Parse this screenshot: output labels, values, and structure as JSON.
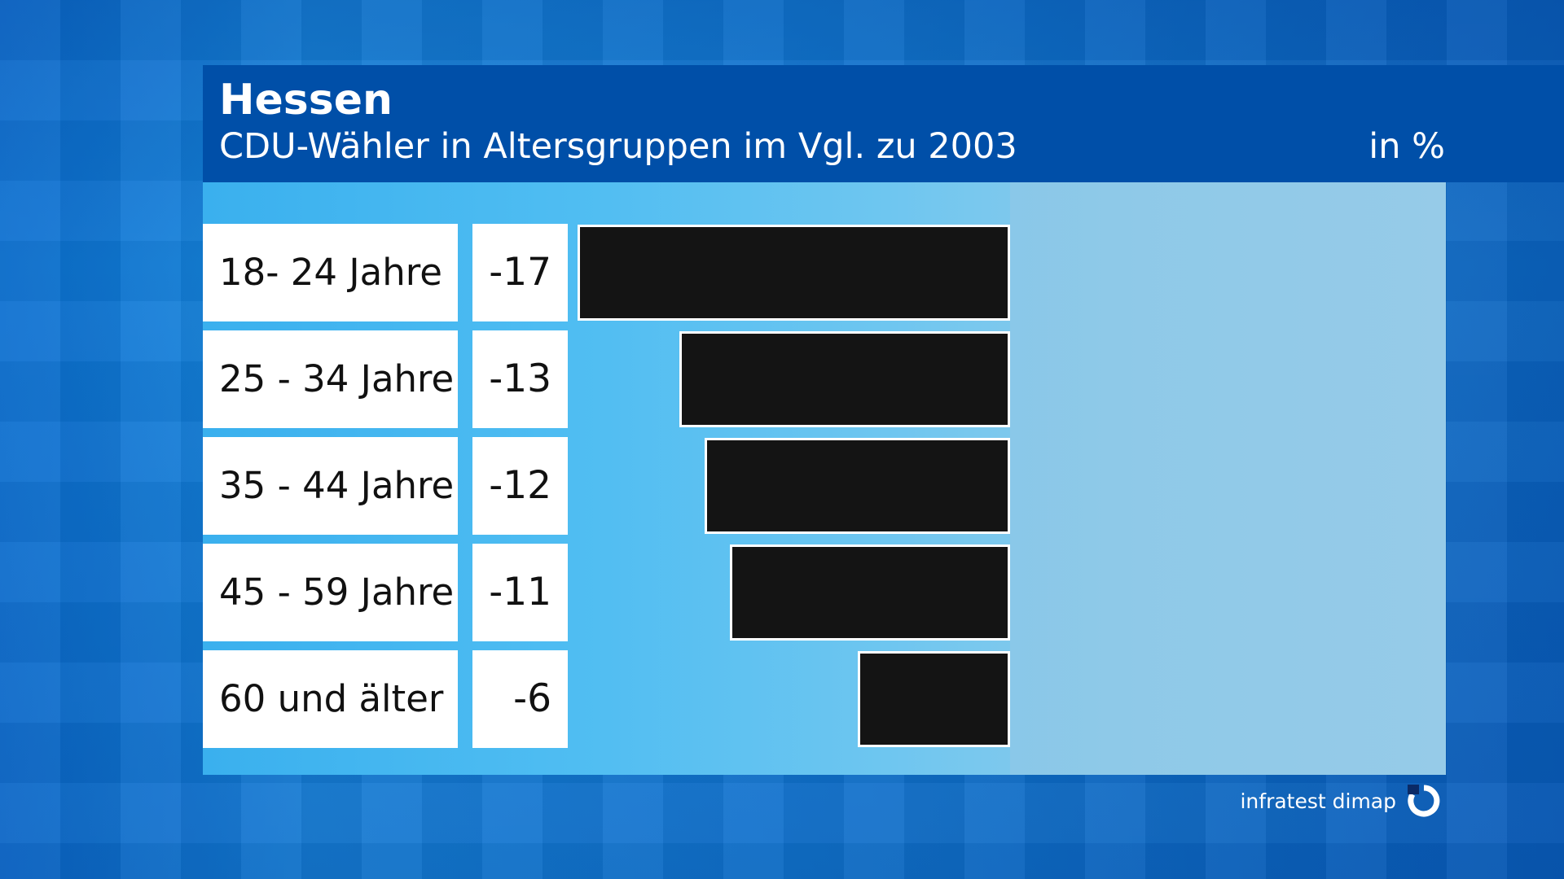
{
  "header": {
    "title": "Hessen",
    "subtitle": "CDU-Wähler in Altersgruppen im Vgl. zu 2003",
    "unit": "in %"
  },
  "branding": {
    "logo_text": "infratest dimap",
    "logo_icon": "infratest-dimap-logo-icon"
  },
  "colors": {
    "header_bg": "#004fa8",
    "bar": "#141414",
    "label_bg": "#ffffff"
  },
  "chart_data": {
    "type": "bar",
    "orientation": "horizontal",
    "title": "Hessen",
    "subtitle": "CDU-Wähler in Altersgruppen im Vgl. zu 2003",
    "unit": "in %",
    "categories": [
      "18- 24 Jahre",
      "25 - 34 Jahre",
      "35 - 44 Jahre",
      "45 - 59 Jahre",
      "60 und älter"
    ],
    "values": [
      -17,
      -13,
      -12,
      -11,
      -6
    ],
    "value_labels": [
      "-17",
      "-13",
      "-12",
      "-11",
      "-6"
    ],
    "xlim": [
      -17,
      0
    ],
    "grid": false,
    "legend": "none"
  }
}
